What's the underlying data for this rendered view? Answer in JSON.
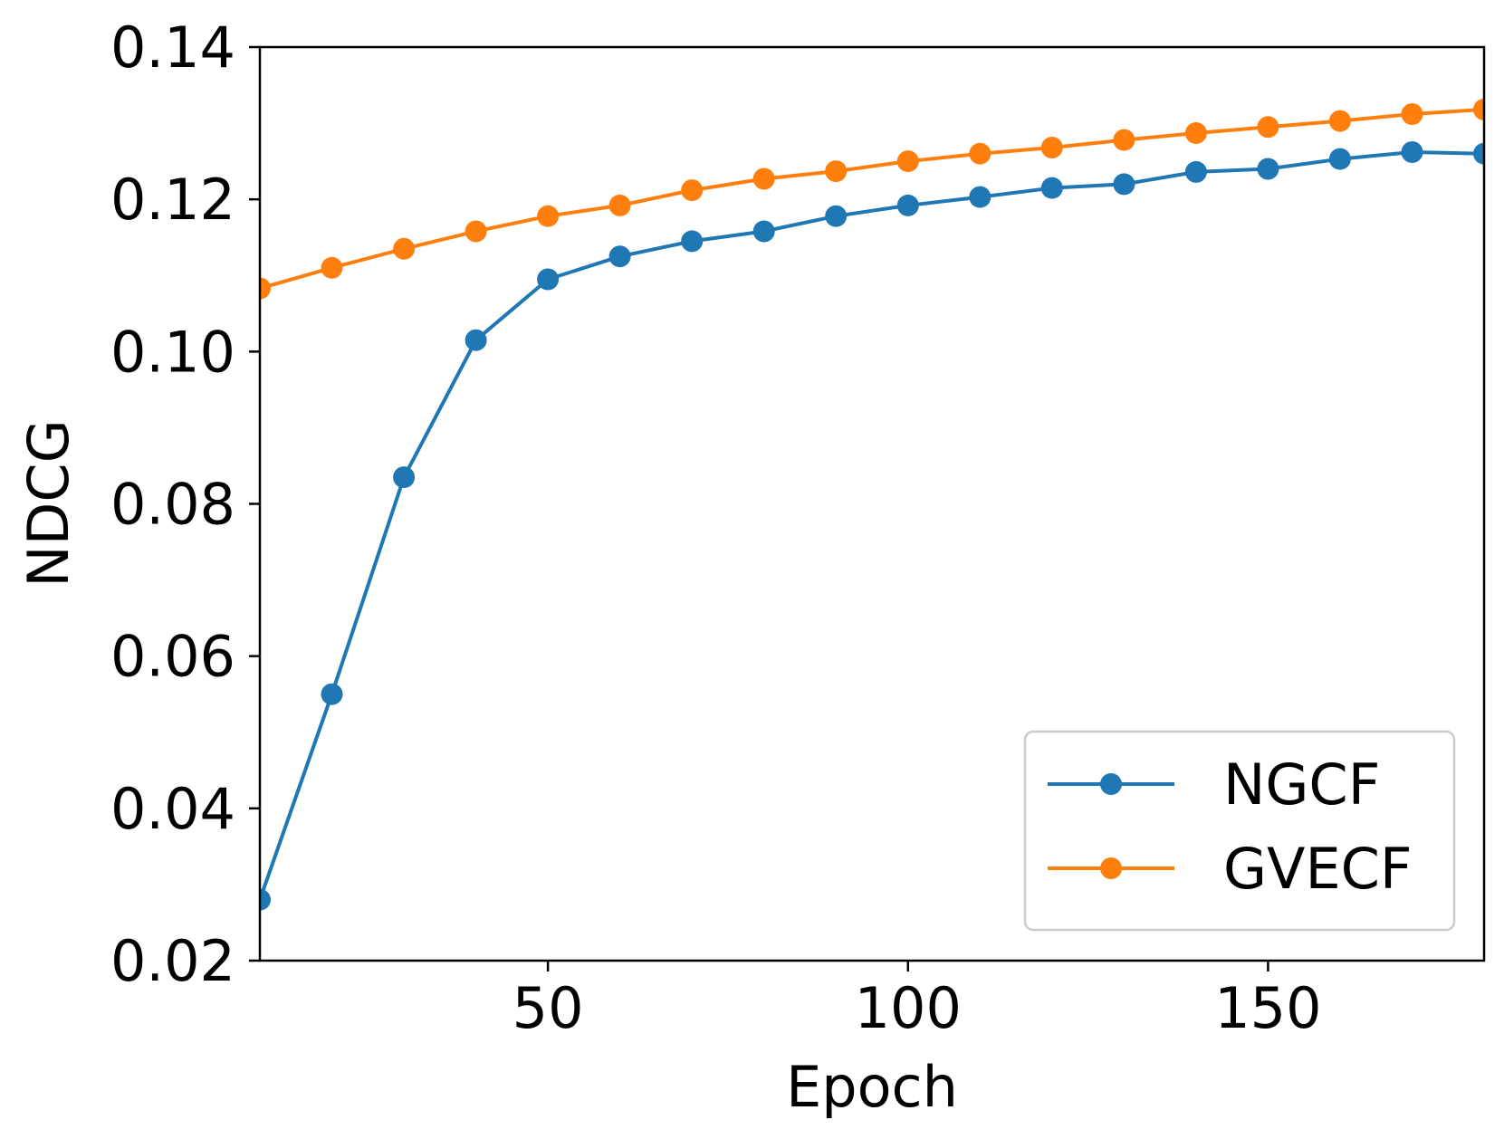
{
  "chart_data": {
    "type": "line",
    "title": "",
    "xlabel": "Epoch",
    "ylabel": "NDCG",
    "xlim": [
      10,
      180
    ],
    "ylim": [
      0.02,
      0.14
    ],
    "xticks": [
      50,
      100,
      150
    ],
    "xtick_labels": [
      "50",
      "100",
      "150"
    ],
    "yticks": [
      0.02,
      0.04,
      0.06,
      0.08,
      0.1,
      0.12,
      0.14
    ],
    "ytick_labels": [
      "0.02",
      "0.04",
      "0.06",
      "0.08",
      "0.10",
      "0.12",
      "0.14"
    ],
    "grid": false,
    "legend_position": "lower-right",
    "x": [
      10,
      20,
      30,
      40,
      50,
      60,
      70,
      80,
      90,
      100,
      110,
      120,
      130,
      140,
      150,
      160,
      170,
      180
    ],
    "series": [
      {
        "name": "NGCF",
        "color": "#1f77b4",
        "values": [
          0.028,
          0.055,
          0.0835,
          0.1015,
          0.1095,
          0.1125,
          0.1145,
          0.1158,
          0.1178,
          0.1192,
          0.1203,
          0.1215,
          0.122,
          0.1236,
          0.124,
          0.1253,
          0.1262,
          0.126
        ]
      },
      {
        "name": "GVECF",
        "color": "#ff7f0e",
        "values": [
          0.1083,
          0.111,
          0.1135,
          0.1158,
          0.1178,
          0.1192,
          0.1212,
          0.1227,
          0.1237,
          0.125,
          0.126,
          0.1268,
          0.1278,
          0.1287,
          0.1295,
          0.1303,
          0.1312,
          0.1318
        ]
      }
    ]
  }
}
